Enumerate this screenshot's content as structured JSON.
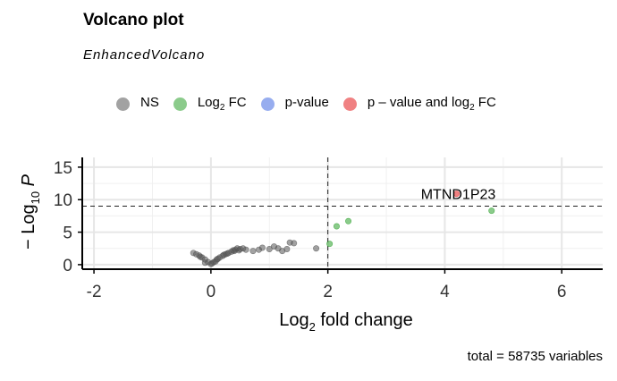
{
  "title": "Volcano plot",
  "subtitle": "EnhancedVolcano",
  "legend": [
    {
      "label": "NS",
      "sub": "",
      "tail": "",
      "color": "#555555"
    },
    {
      "label": "Log",
      "sub": "2",
      "tail": " FC",
      "color": "#2ca02c"
    },
    {
      "label": "p-value",
      "sub": "",
      "tail": "",
      "color": "#4169e1"
    },
    {
      "label": "p – value and log",
      "sub": "2",
      "tail": " FC",
      "color": "#e41a1c"
    }
  ],
  "caption": "total = 58735 variables",
  "chart_data": {
    "type": "scatter",
    "title": "Volcano plot",
    "subtitle": "EnhancedVolcano",
    "xlabel": {
      "main": "Log",
      "sub": "2",
      "tail": " fold change"
    },
    "ylabel": {
      "main": "− Log",
      "sub": "10",
      "tail": " P"
    },
    "xlim": [
      -2.2,
      6.7
    ],
    "ylim": [
      -0.7,
      16.5
    ],
    "x_ticks": [
      -2,
      0,
      2,
      4,
      6
    ],
    "x_tick_labels": [
      "-2",
      "0",
      "2",
      "4",
      "6"
    ],
    "y_ticks": [
      0,
      5,
      10,
      15
    ],
    "y_tick_labels": [
      "0",
      "5",
      "10",
      "15"
    ],
    "grid": true,
    "cutoffs": {
      "x": 2,
      "y": 9
    },
    "series": [
      {
        "name": "NS",
        "color": "#555555",
        "points": [
          [
            -0.3,
            1.8
          ],
          [
            -0.25,
            1.6
          ],
          [
            -0.2,
            1.4
          ],
          [
            -0.15,
            1.1
          ],
          [
            -0.1,
            0.8
          ],
          [
            -0.05,
            0.4
          ],
          [
            0.0,
            0.1
          ],
          [
            0.05,
            0.4
          ],
          [
            0.1,
            0.8
          ],
          [
            0.15,
            1.1
          ],
          [
            0.2,
            1.35
          ],
          [
            0.25,
            1.6
          ],
          [
            0.3,
            1.8
          ],
          [
            0.35,
            2.0
          ],
          [
            0.4,
            2.1
          ],
          [
            0.42,
            2.3
          ],
          [
            0.45,
            2.5
          ],
          [
            0.5,
            2.4
          ],
          [
            0.55,
            2.5
          ],
          [
            0.6,
            2.3
          ],
          [
            0.72,
            2.1
          ],
          [
            0.82,
            2.3
          ],
          [
            0.88,
            2.6
          ],
          [
            1.0,
            2.4
          ],
          [
            1.08,
            2.8
          ],
          [
            1.15,
            2.5
          ],
          [
            1.22,
            2.1
          ],
          [
            1.3,
            2.4
          ],
          [
            1.35,
            3.4
          ],
          [
            1.42,
            3.3
          ],
          [
            1.8,
            2.5
          ],
          [
            -0.1,
            0.3
          ],
          [
            0.02,
            0.2
          ],
          [
            0.08,
            0.5
          ],
          [
            0.12,
            0.9
          ],
          [
            -0.18,
            1.2
          ],
          [
            0.22,
            1.5
          ],
          [
            0.28,
            1.7
          ],
          [
            0.38,
            2.2
          ],
          [
            0.48,
            2.2
          ]
        ]
      },
      {
        "name": "Log2 FC",
        "color": "#2ca02c",
        "points": [
          [
            2.03,
            3.2
          ],
          [
            2.15,
            5.9
          ],
          [
            2.35,
            6.7
          ],
          [
            4.8,
            8.3
          ]
        ]
      },
      {
        "name": "p - value and log2 FC",
        "color": "#e41a1c",
        "points": [
          [
            4.2,
            10.9
          ]
        ]
      }
    ],
    "annotations": [
      {
        "text": "MTND1P23",
        "x": 4.2,
        "y": 10.9
      }
    ]
  }
}
